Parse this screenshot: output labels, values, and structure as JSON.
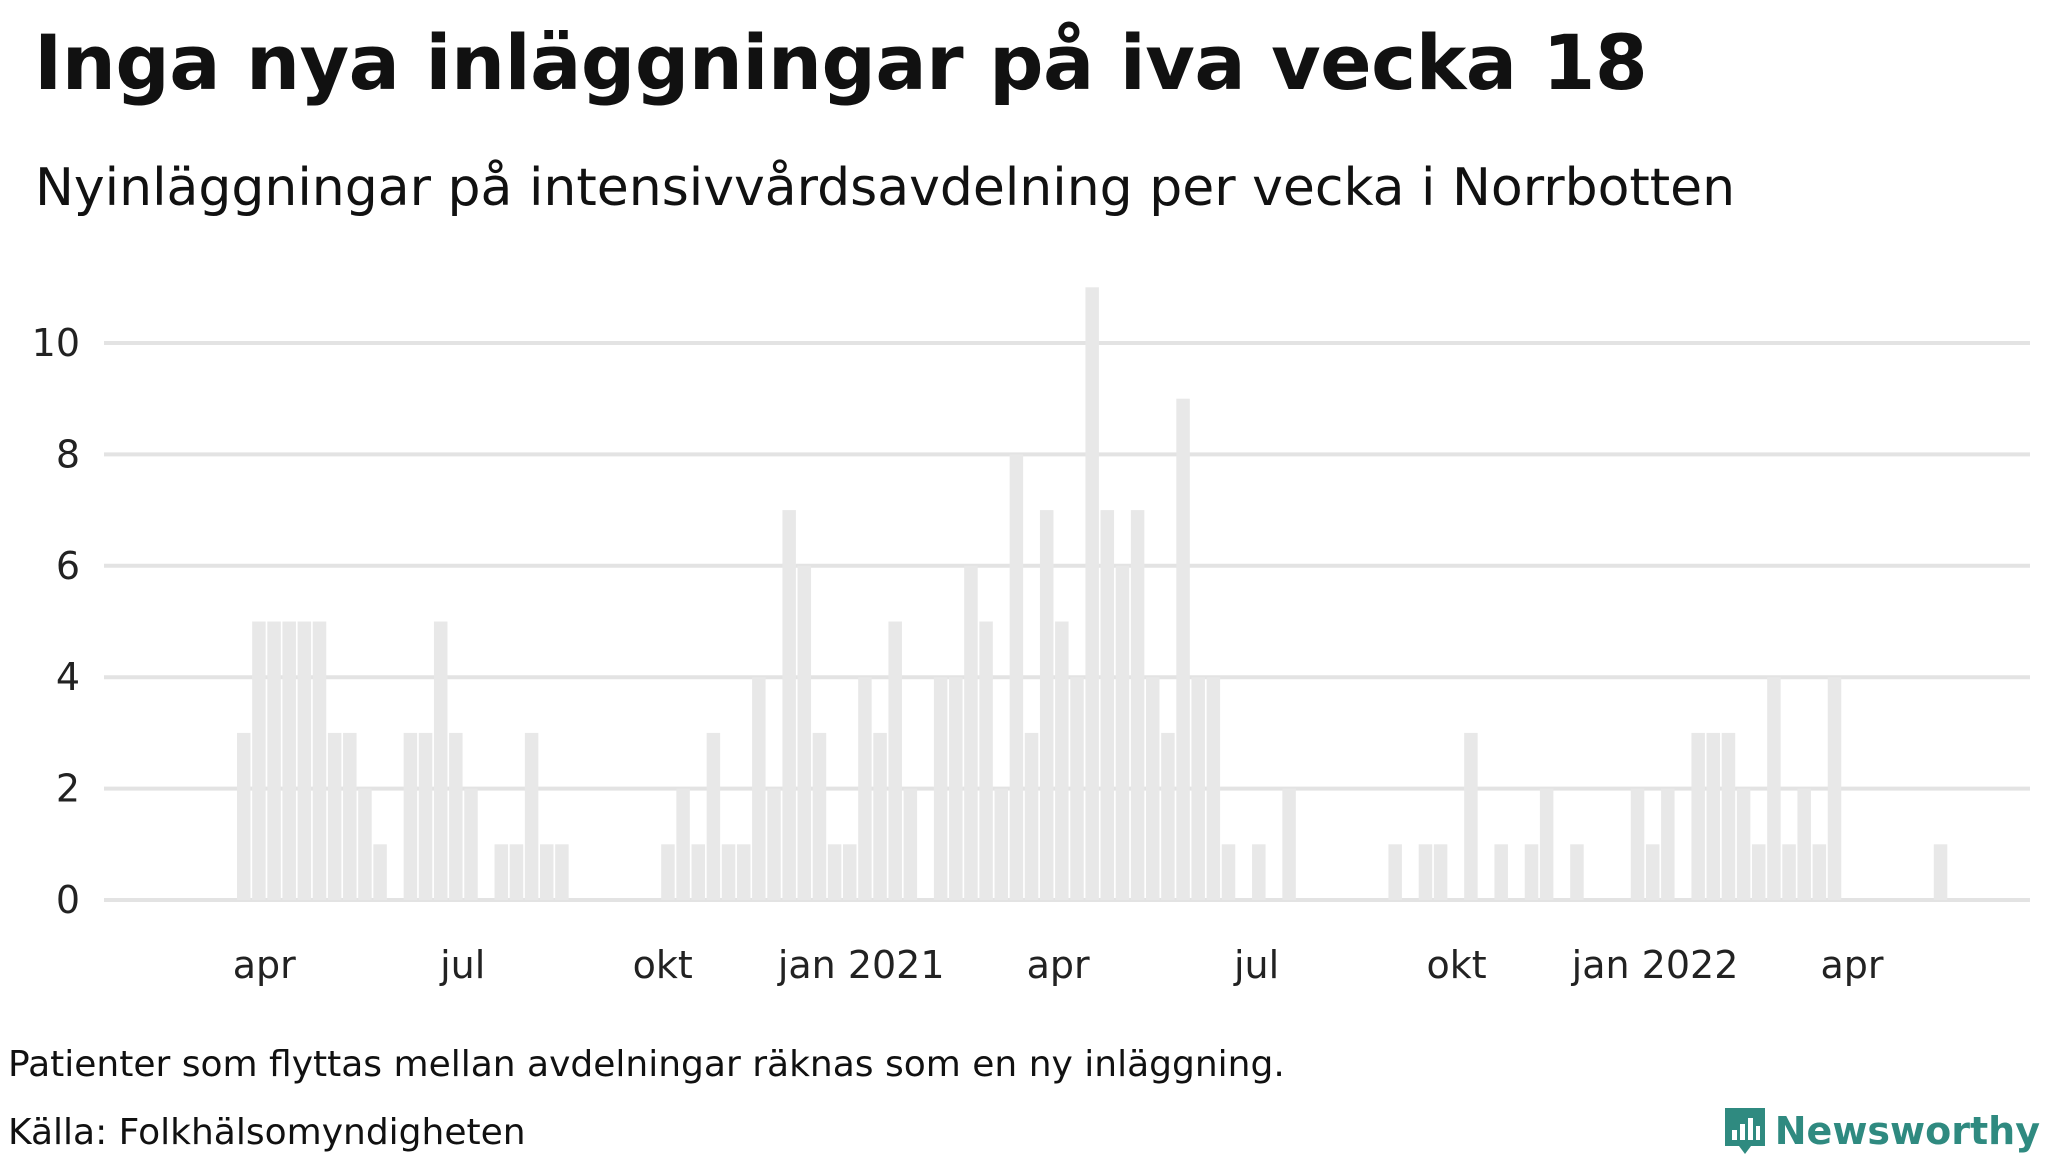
{
  "title": "Inga nya inläggningar på iva vecka 18",
  "subtitle": "Nyinläggningar på intensivvårdsavdelning per vecka i Norrbotten",
  "note": "Patienter som flyttas mellan avdelningar räknas som en ny inläggning.",
  "source": "Källa: Folkhälsomyndigheten",
  "brand": "Newsworthy",
  "colors": {
    "bar": "#e8e8e8",
    "grid": "#e3e3e3",
    "brand": "#2f8a80"
  },
  "chart_data": {
    "type": "bar",
    "title": "Inga nya inläggningar på iva vecka 18",
    "xlabel": "",
    "ylabel": "",
    "ylim": [
      0,
      11
    ],
    "grid": true,
    "unit": "weekly",
    "yticks": [
      0,
      2,
      4,
      6,
      8,
      10
    ],
    "xticks": [
      {
        "label": "apr",
        "week_index": 1.8
      },
      {
        "label": "jul",
        "week_index": 14.9
      },
      {
        "label": "okt",
        "week_index": 28.1
      },
      {
        "label": "jan 2021",
        "week_index": 41.2
      },
      {
        "label": "apr",
        "week_index": 54.2
      },
      {
        "label": "jul",
        "week_index": 67.3
      },
      {
        "label": "okt",
        "week_index": 80.5
      },
      {
        "label": "jan 2022",
        "week_index": 93.6
      },
      {
        "label": "apr",
        "week_index": 106.6
      }
    ],
    "values": [
      3,
      5,
      5,
      5,
      5,
      5,
      3,
      3,
      2,
      1,
      0,
      3,
      3,
      5,
      3,
      2,
      0,
      1,
      1,
      3,
      1,
      1,
      0,
      0,
      0,
      0,
      0,
      0,
      1,
      2,
      1,
      3,
      1,
      1,
      4,
      2,
      7,
      6,
      3,
      1,
      1,
      4,
      3,
      5,
      2,
      0,
      4,
      4,
      6,
      5,
      2,
      8,
      3,
      7,
      5,
      4,
      11,
      7,
      6,
      7,
      4,
      3,
      9,
      4,
      4,
      1,
      0,
      1,
      0,
      2,
      0,
      0,
      0,
      0,
      0,
      0,
      1,
      0,
      1,
      1,
      0,
      3,
      0,
      1,
      0,
      1,
      2,
      0,
      1,
      0,
      0,
      0,
      2,
      1,
      2,
      0,
      3,
      3,
      3,
      2,
      1,
      4,
      1,
      2,
      1,
      4,
      0,
      0,
      0,
      0,
      0,
      0,
      1,
      0,
      0,
      0
    ]
  }
}
